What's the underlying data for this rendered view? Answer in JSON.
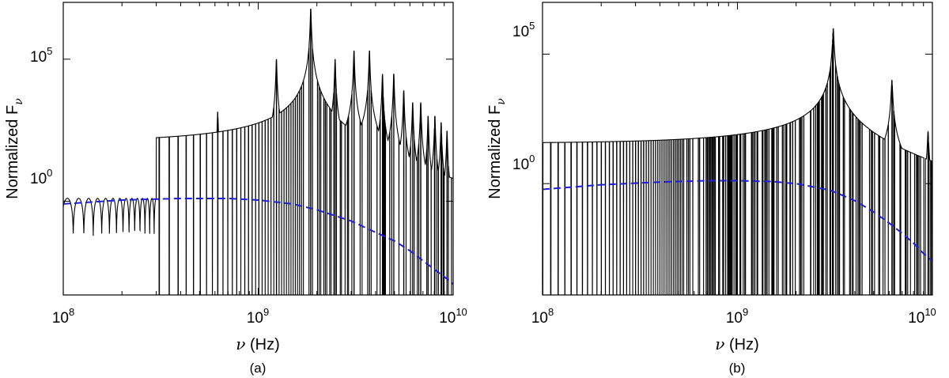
{
  "colors": {
    "spectrum": "#000000",
    "fit": "#1f1fd6"
  },
  "chart_data": [
    {
      "type": "line",
      "panel_label": "(a)",
      "xlabel_symbol": "ν",
      "xlabel_unit": " (Hz)",
      "ylabel_main": "Normalized F",
      "ylabel_sub": "ν",
      "x_scale": "log",
      "y_scale": "log",
      "xlim": [
        100000000,
        10000000000
      ],
      "ylim": [
        0.0005,
        10000000
      ],
      "x_ticks": [
        {
          "base": "10",
          "exp": "8",
          "value": 100000000
        },
        {
          "base": "10",
          "exp": "9",
          "value": 1000000000
        },
        {
          "base": "10",
          "exp": "10",
          "value": 10000000000
        }
      ],
      "y_ticks": [
        {
          "base": "10",
          "exp": "0",
          "value": 1
        },
        {
          "base": "10",
          "exp": "5",
          "value": 100000
        }
      ],
      "grid": false,
      "legend": "none",
      "series": [
        {
          "style": "solid",
          "color": "#000000",
          "description_key": "spectrum",
          "resonance_spacing_hz": 620000000,
          "resonance_peaks": [
            {
              "x": 620000000,
              "y": 1400
            },
            {
              "x": 1240000000,
              "y": 100000
            },
            {
              "x": 1860000000,
              "y": 6000000
            },
            {
              "x": 2480000000,
              "y": 100000
            },
            {
              "x": 3100000000,
              "y": 200000
            },
            {
              "x": 3720000000,
              "y": 200000
            },
            {
              "x": 4340000000,
              "y": 30000
            },
            {
              "x": 4960000000,
              "y": 30000
            },
            {
              "x": 5580000000,
              "y": 8000
            },
            {
              "x": 6200000000,
              "y": 3000
            },
            {
              "x": 6820000000,
              "y": 3000
            },
            {
              "x": 7440000000,
              "y": 1000
            },
            {
              "x": 8060000000,
              "y": 1000
            },
            {
              "x": 8680000000,
              "y": 600
            },
            {
              "x": 9300000000,
              "y": 300
            }
          ],
          "low_freq_oscillation_amplitude": 1.6
        },
        {
          "style": "dashed",
          "color": "#1f1fd6",
          "description_key": "fit",
          "points": [
            {
              "x": 100000000,
              "y": 0.8
            },
            {
              "x": 200000000,
              "y": 1.1
            },
            {
              "x": 400000000,
              "y": 1.25
            },
            {
              "x": 700000000,
              "y": 1.25
            },
            {
              "x": 1000000000,
              "y": 1.1
            },
            {
              "x": 1500000000,
              "y": 0.8
            },
            {
              "x": 2000000000,
              "y": 0.5
            },
            {
              "x": 3000000000,
              "y": 0.2
            },
            {
              "x": 4000000000,
              "y": 0.08
            },
            {
              "x": 5000000000,
              "y": 0.04
            },
            {
              "x": 6000000000,
              "y": 0.018
            },
            {
              "x": 7000000000,
              "y": 0.008
            },
            {
              "x": 8000000000,
              "y": 0.004
            },
            {
              "x": 9000000000,
              "y": 0.0022
            },
            {
              "x": 10000000000,
              "y": 0.0012
            }
          ]
        }
      ]
    },
    {
      "type": "line",
      "panel_label": "(b)",
      "xlabel_symbol": "ν",
      "xlabel_unit": " (Hz)",
      "ylabel_main": "Normalized F",
      "ylabel_sub": "ν",
      "x_scale": "log",
      "y_scale": "log",
      "xlim": [
        100000000,
        10000000000
      ],
      "ylim": [
        5e-05,
        10000000
      ],
      "x_ticks": [
        {
          "base": "10",
          "exp": "8",
          "value": 100000000
        },
        {
          "base": "10",
          "exp": "9",
          "value": 1000000000
        },
        {
          "base": "10",
          "exp": "10",
          "value": 10000000000
        }
      ],
      "y_ticks": [
        {
          "base": "10",
          "exp": "0",
          "value": 1
        },
        {
          "base": "10",
          "exp": "5",
          "value": 100000
        }
      ],
      "grid": false,
      "legend": "none",
      "series": [
        {
          "style": "solid",
          "color": "#000000",
          "description_key": "spectrum",
          "resonance_peaks": [
            {
              "x": 3100000000,
              "y": 1000000
            },
            {
              "x": 6200000000,
              "y": 10000
            },
            {
              "x": 9500000000,
              "y": 100
            }
          ],
          "envelope_start_y": 40,
          "envelope_end_x": 3100000000
        },
        {
          "style": "dashed",
          "color": "#1f1fd6",
          "description_key": "fit",
          "points": [
            {
              "x": 100000000,
              "y": 0.6
            },
            {
              "x": 200000000,
              "y": 0.9
            },
            {
              "x": 400000000,
              "y": 1.15
            },
            {
              "x": 700000000,
              "y": 1.3
            },
            {
              "x": 1000000000,
              "y": 1.3
            },
            {
              "x": 1500000000,
              "y": 1.2
            },
            {
              "x": 2000000000,
              "y": 1.0
            },
            {
              "x": 3000000000,
              "y": 0.55
            },
            {
              "x": 4000000000,
              "y": 0.22
            },
            {
              "x": 5000000000,
              "y": 0.08
            },
            {
              "x": 6000000000,
              "y": 0.03
            },
            {
              "x": 7000000000,
              "y": 0.012
            },
            {
              "x": 8000000000,
              "y": 0.005
            },
            {
              "x": 9000000000,
              "y": 0.002
            },
            {
              "x": 10000000000,
              "y": 0.001
            }
          ]
        }
      ]
    }
  ]
}
